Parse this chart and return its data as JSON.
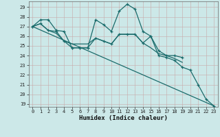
{
  "xlabel": "Humidex (Indice chaleur)",
  "background_color": "#cce8e8",
  "grid_color": "#aacece",
  "line_color": "#1a6b6b",
  "xlim": [
    -0.5,
    23.5
  ],
  "ylim": [
    18.7,
    29.6
  ],
  "yticks": [
    19,
    20,
    21,
    22,
    23,
    24,
    25,
    26,
    27,
    28,
    29
  ],
  "xticks": [
    0,
    1,
    2,
    3,
    4,
    5,
    6,
    7,
    8,
    9,
    10,
    11,
    12,
    13,
    14,
    15,
    16,
    17,
    18,
    19,
    20,
    21,
    22,
    23
  ],
  "series": [
    {
      "x": [
        0,
        1,
        2,
        3,
        4,
        5,
        6,
        7,
        8,
        9,
        10,
        11,
        12,
        13,
        14,
        15,
        16,
        17,
        18,
        19
      ],
      "y": [
        27.0,
        27.7,
        27.7,
        26.6,
        26.5,
        24.8,
        24.8,
        24.8,
        27.7,
        27.2,
        26.5,
        28.6,
        29.3,
        28.8,
        26.5,
        26.0,
        24.5,
        24.0,
        24.0,
        23.8
      ],
      "marker": true,
      "linewidth": 0.9
    },
    {
      "x": [
        0,
        1,
        2,
        3,
        4,
        5,
        6,
        7,
        8,
        9,
        10,
        11,
        12,
        13,
        14,
        15,
        16,
        17,
        18,
        19
      ],
      "y": [
        27.0,
        27.3,
        26.6,
        26.3,
        25.5,
        25.2,
        25.2,
        25.2,
        25.8,
        25.5,
        25.2,
        26.2,
        26.2,
        26.2,
        25.3,
        24.8,
        24.2,
        24.0,
        23.7,
        23.3
      ],
      "marker": false,
      "linewidth": 0.9
    },
    {
      "x": [
        0,
        23
      ],
      "y": [
        27.0,
        18.8
      ],
      "marker": false,
      "linewidth": 0.9
    },
    {
      "x": [
        0,
        1,
        2,
        3,
        4,
        5,
        6,
        7,
        8,
        9,
        10,
        11,
        12,
        13,
        14,
        15,
        16,
        17,
        18,
        19,
        20,
        21,
        22,
        23
      ],
      "y": [
        27.0,
        27.3,
        26.6,
        26.5,
        25.5,
        24.8,
        24.8,
        24.8,
        25.8,
        25.5,
        25.2,
        26.2,
        26.2,
        26.2,
        25.3,
        26.0,
        24.0,
        23.8,
        23.5,
        22.8,
        22.5,
        21.0,
        19.5,
        18.8
      ],
      "marker": true,
      "linewidth": 0.9
    }
  ]
}
